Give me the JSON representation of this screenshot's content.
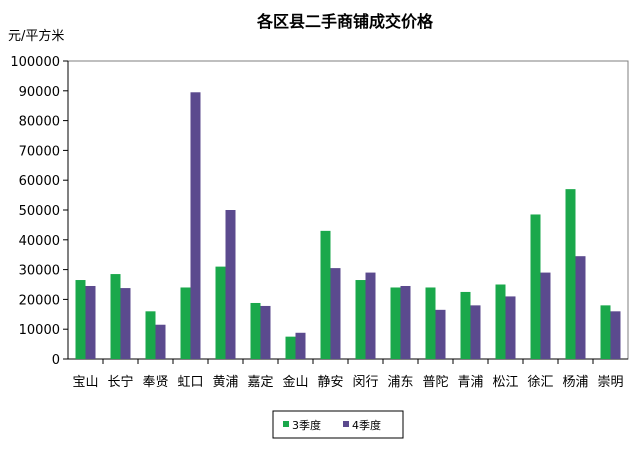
{
  "chart_data": {
    "type": "bar",
    "title": "各区县二手商铺成交价格",
    "ylabel": "元/平方米",
    "xlabel": "",
    "ylim": [
      0,
      100000
    ],
    "yticks": [
      "0",
      "10000",
      "20000",
      "30000",
      "40000",
      "50000",
      "60000",
      "70000",
      "80000",
      "90000",
      "100000"
    ],
    "grid": false,
    "legend_position": "bottom",
    "categories": [
      "宝山",
      "长宁",
      "奉贤",
      "虹口",
      "黄浦",
      "嘉定",
      "金山",
      "静安",
      "闵行",
      "浦东",
      "普陀",
      "青浦",
      "松江",
      "徐汇",
      "杨浦",
      "崇明"
    ],
    "series": [
      {
        "name": "3季度",
        "color": "#1aa84b",
        "values": [
          26500,
          28500,
          16000,
          24000,
          31000,
          18800,
          7500,
          43000,
          26500,
          24000,
          24000,
          22500,
          25000,
          48500,
          57000,
          18000
        ]
      },
      {
        "name": "4季度",
        "color": "#5b4a8e",
        "values": [
          24500,
          23800,
          11500,
          89500,
          50000,
          17800,
          8800,
          30500,
          29000,
          24500,
          16500,
          18000,
          21000,
          29000,
          34500,
          16000
        ]
      }
    ]
  }
}
